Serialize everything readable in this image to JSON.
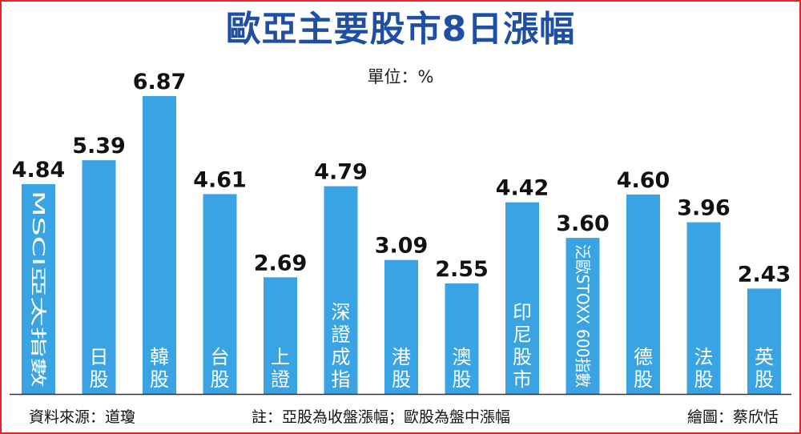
{
  "title": "歐亞主要股市8日漲幅",
  "unit": "單位：%",
  "footer": {
    "source": "資料來源：道瓊",
    "note": "註：亞股為收盤漲幅；歐股為盤中漲幅",
    "credit": "繪圖：蔡欣恬"
  },
  "colors": {
    "bar": "#3aa3e3",
    "title": "#1f4fa3",
    "border": "#e8232a",
    "axis": "#333333"
  },
  "chart_data": {
    "type": "bar",
    "title": "歐亞主要股市8日漲幅",
    "ylabel": "單位：%",
    "ylim": [
      0,
      6.87
    ],
    "grid": false,
    "legend": "none",
    "categories": [
      "MSCI亞太指數",
      "日股",
      "韓股",
      "台股",
      "上證",
      "深證成指",
      "港股",
      "澳股",
      "印尼股市",
      "泛歐STOXX 600指數",
      "德股",
      "法股",
      "英股"
    ],
    "label_orientation": [
      "rotated",
      "upright",
      "upright",
      "upright",
      "upright",
      "upright",
      "upright",
      "upright",
      "upright",
      "rotated",
      "upright",
      "upright",
      "upright"
    ],
    "values": [
      4.84,
      5.39,
      6.87,
      4.61,
      2.69,
      4.79,
      3.09,
      2.55,
      4.42,
      3.6,
      4.6,
      3.96,
      2.43
    ],
    "value_labels": [
      "4.84",
      "5.39",
      "6.87",
      "4.61",
      "2.69",
      "4.79",
      "3.09",
      "2.55",
      "4.42",
      "3.60",
      "4.60",
      "3.96",
      "2.43"
    ]
  }
}
